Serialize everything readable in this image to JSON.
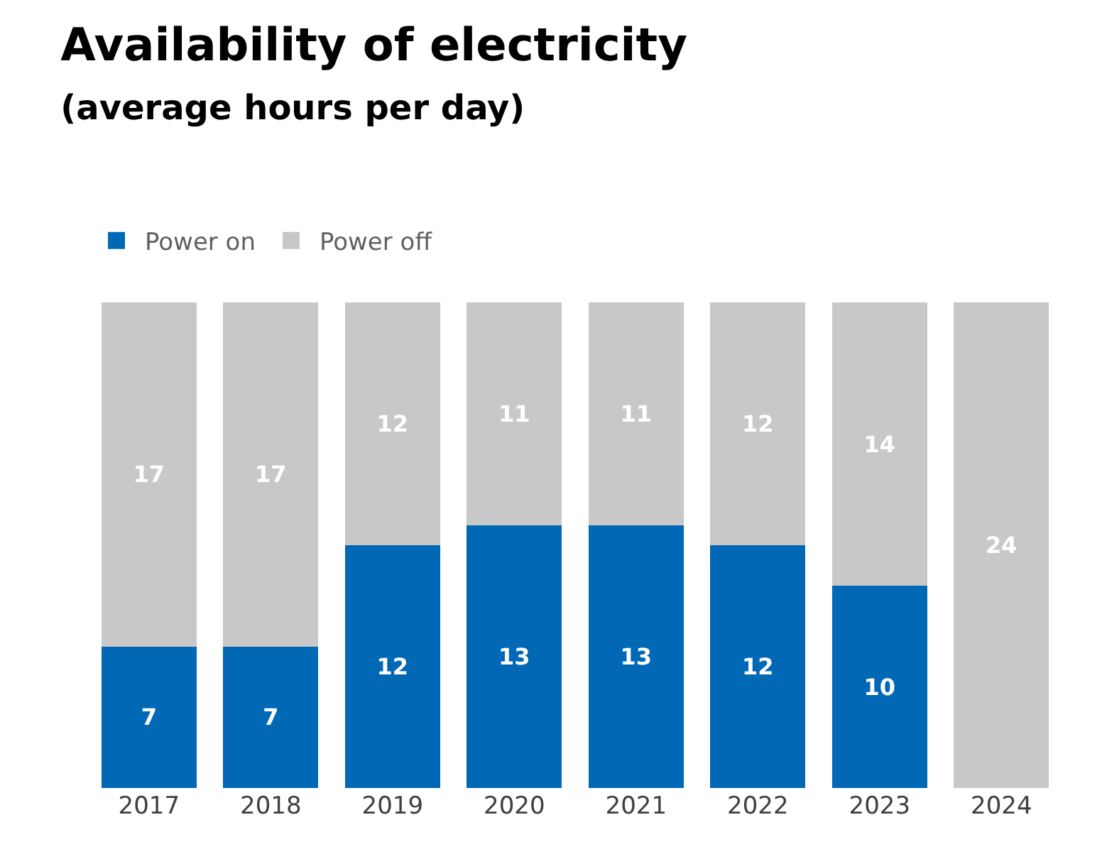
{
  "chart_data": {
    "type": "bar",
    "title": "Availability of electricity",
    "subtitle": "(average hours per day)",
    "categories": [
      "2017",
      "2018",
      "2019",
      "2020",
      "2021",
      "2022",
      "2023",
      "2024"
    ],
    "stacked": true,
    "legend": "top left",
    "grid": false,
    "series": [
      {
        "name": "Power on",
        "color": "#0068b5",
        "values": [
          7,
          7,
          12,
          13,
          13,
          12,
          10,
          0
        ],
        "value_labels": [
          "7",
          "7",
          "12",
          "13",
          "13",
          "12",
          "10",
          null
        ]
      },
      {
        "name": "Power off",
        "color": "#c8c8c8",
        "values": [
          17,
          17,
          12,
          11,
          11,
          12,
          14,
          24
        ],
        "value_labels": [
          "17",
          "17",
          "12",
          "11",
          "11",
          "12",
          "14",
          "24"
        ]
      }
    ]
  }
}
